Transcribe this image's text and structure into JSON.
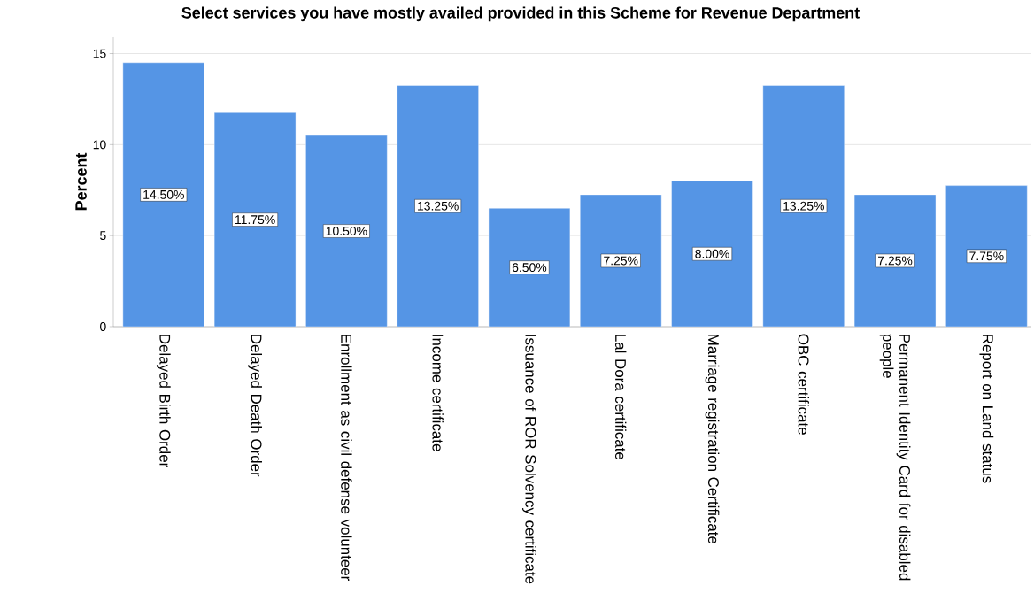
{
  "chart_data": {
    "type": "bar",
    "title": "Select services you have mostly availed provided in this Scheme for Revenue Department",
    "ylabel": "Percent",
    "categories": [
      "Delayed Birth Order",
      "Delayed Death Order",
      "Enrollment as civil defense volunteer",
      "Income certificate",
      "Issuance of ROR Solvency certificate",
      "Lal Dora certificate",
      "Marriage registration Certificate",
      "OBC certificate",
      "Permanent Identity Card for disabled people",
      "Report on Land status"
    ],
    "values": [
      14.5,
      11.75,
      10.5,
      13.25,
      6.5,
      7.25,
      8,
      13.25,
      7.25,
      7.75
    ],
    "value_labels": [
      "14.50%",
      "11.75%",
      "10.50%",
      "13.25%",
      "6.50%",
      "7.25%",
      "8.00%",
      "13.25%",
      "7.25%",
      "7.75%"
    ],
    "color": "#5595e5",
    "ylim": [
      0,
      15.9
    ],
    "yticks": [
      0,
      5,
      10,
      15
    ],
    "grid": "y"
  }
}
